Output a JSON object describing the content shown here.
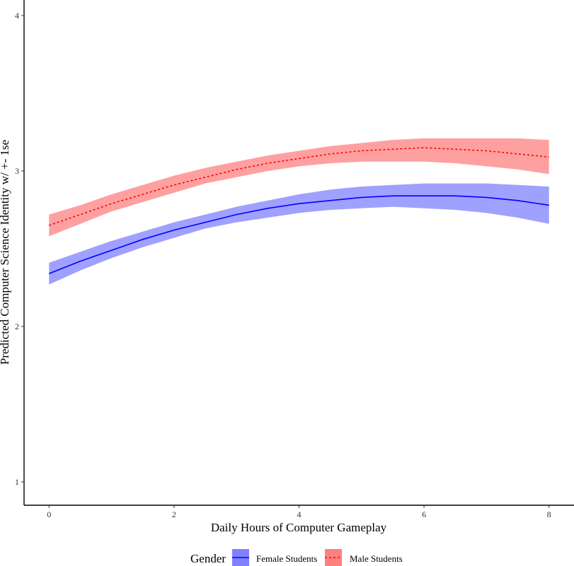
{
  "chart_data": {
    "type": "line",
    "xlabel": "Daily Hours of Computer Gameplay",
    "ylabel": "Predicted Computer Science Identity w/ +- 1se",
    "xlim": [
      -0.4,
      8.4
    ],
    "ylim": [
      0.85,
      4.1
    ],
    "xticks": [
      0,
      2,
      4,
      6,
      8
    ],
    "yticks": [
      1,
      2,
      3,
      4
    ],
    "grid": false,
    "legend": {
      "title": "Gender",
      "position": "bottom",
      "entries": [
        "Female Students",
        "Male Students"
      ]
    },
    "x": [
      0,
      0.5,
      1,
      1.5,
      2,
      2.5,
      3,
      3.5,
      4,
      4.5,
      5,
      5.5,
      6,
      6.5,
      7,
      7.5,
      8
    ],
    "series": [
      {
        "name": "Female Students",
        "line_color": "#0000ff",
        "fill_color": "#8080ff",
        "line_style": "solid",
        "values": [
          2.34,
          2.42,
          2.49,
          2.56,
          2.62,
          2.67,
          2.72,
          2.76,
          2.79,
          2.81,
          2.83,
          2.84,
          2.84,
          2.84,
          2.83,
          2.81,
          2.78
        ],
        "lower": [
          2.27,
          2.36,
          2.44,
          2.51,
          2.57,
          2.63,
          2.67,
          2.7,
          2.73,
          2.75,
          2.76,
          2.77,
          2.76,
          2.75,
          2.73,
          2.7,
          2.66
        ],
        "upper": [
          2.41,
          2.48,
          2.55,
          2.61,
          2.67,
          2.72,
          2.77,
          2.81,
          2.85,
          2.88,
          2.9,
          2.91,
          2.92,
          2.92,
          2.92,
          2.91,
          2.9
        ]
      },
      {
        "name": "Male Students",
        "line_color": "#ff0000",
        "fill_color": "#ff8080",
        "line_style": "dashed",
        "values": [
          2.65,
          2.72,
          2.79,
          2.85,
          2.91,
          2.96,
          3.01,
          3.05,
          3.08,
          3.11,
          3.13,
          3.14,
          3.15,
          3.14,
          3.13,
          3.11,
          3.09
        ],
        "lower": [
          2.58,
          2.66,
          2.74,
          2.8,
          2.86,
          2.92,
          2.96,
          3.0,
          3.03,
          3.05,
          3.06,
          3.06,
          3.06,
          3.05,
          3.03,
          3.01,
          2.98
        ],
        "upper": [
          2.72,
          2.78,
          2.85,
          2.91,
          2.97,
          3.02,
          3.06,
          3.1,
          3.13,
          3.16,
          3.18,
          3.2,
          3.21,
          3.21,
          3.21,
          3.21,
          3.2
        ]
      }
    ]
  }
}
